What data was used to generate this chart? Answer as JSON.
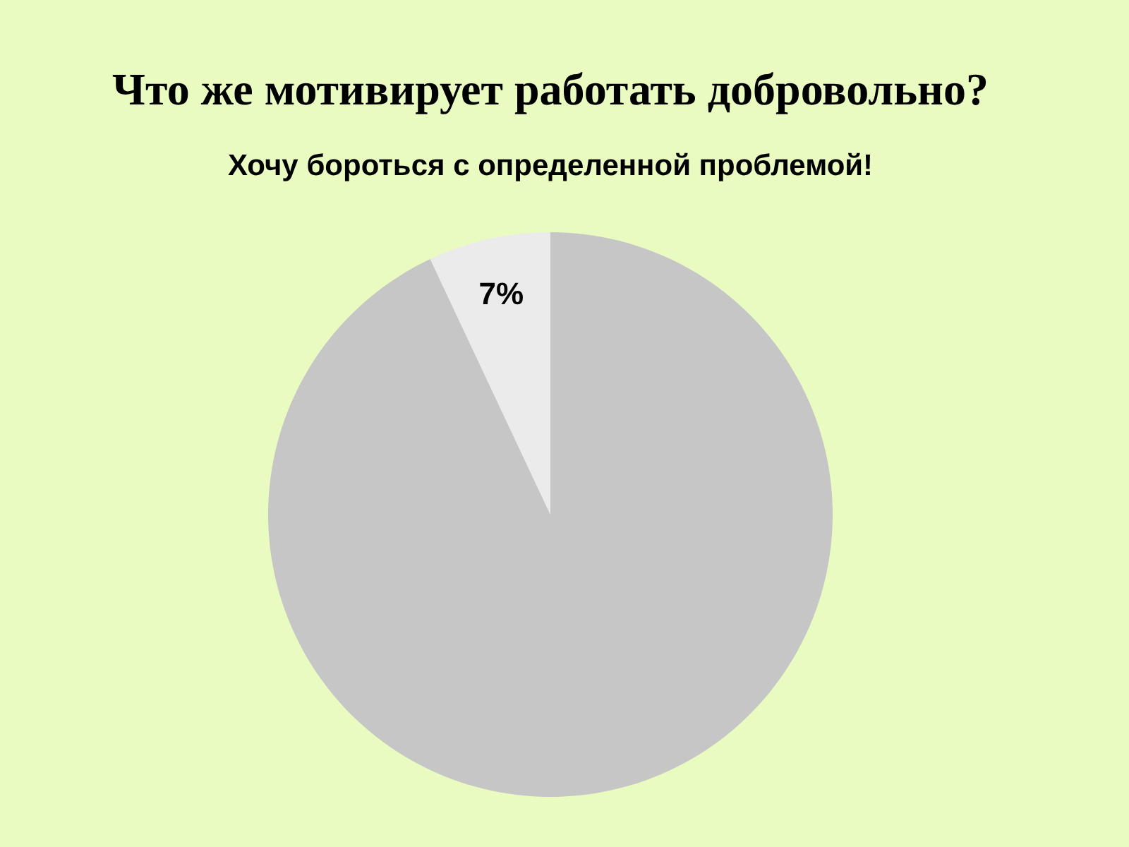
{
  "chart_data": {
    "type": "pie",
    "title": "Что же мотивирует работать добровольно?",
    "subtitle": "Хочу бороться  с определенной проблемой!",
    "categories": [
      null,
      null
    ],
    "values": [
      93,
      7
    ],
    "colors": [
      "#c6c6c6",
      "#ebebeb"
    ],
    "value_labels": [
      null,
      "7%"
    ]
  }
}
